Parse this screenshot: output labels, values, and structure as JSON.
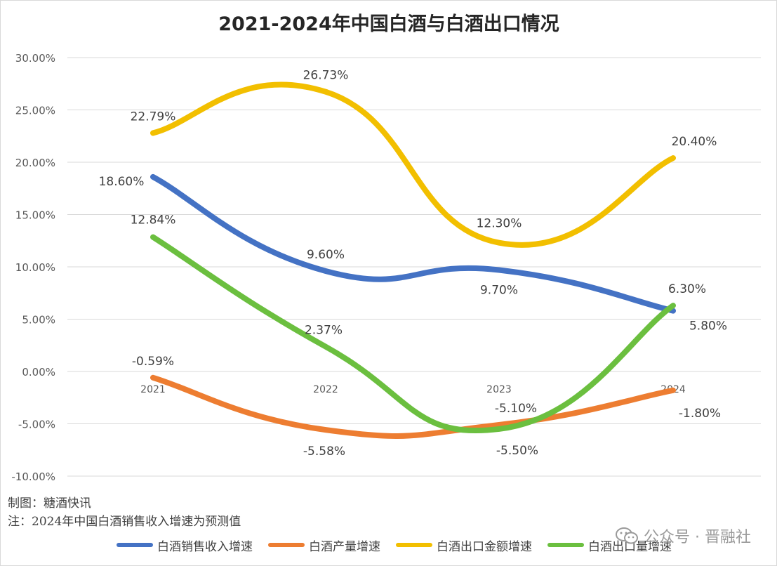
{
  "chart_data": {
    "type": "line",
    "title": "2021-2024年中国白酒与白酒出口情况",
    "categories": [
      "2021",
      "2022",
      "2023",
      "2024"
    ],
    "ylim": [
      -10,
      30
    ],
    "yticks": [
      "-10.00%",
      "-5.00%",
      "0.00%",
      "5.00%",
      "10.00%",
      "15.00%",
      "20.00%",
      "25.00%",
      "30.00%"
    ],
    "ytick_values": [
      -10,
      -5,
      0,
      5,
      10,
      15,
      20,
      25,
      30
    ],
    "grid": true,
    "legend_position": "bottom",
    "series": [
      {
        "name": "白酒销售收入增速",
        "color": "#4472C4",
        "values": [
          18.6,
          9.6,
          9.7,
          5.8
        ],
        "labels": [
          "18.60%",
          "9.60%",
          "9.70%",
          "5.80%"
        ]
      },
      {
        "name": "白酒产量增速",
        "color": "#ED7D31",
        "values": [
          -0.59,
          -5.58,
          -5.1,
          -1.8
        ],
        "labels": [
          "-0.59%",
          "-5.58%",
          "-5.10%",
          "-1.80%"
        ]
      },
      {
        "name": "白酒出口金额增速",
        "color": "#F2BF00",
        "values": [
          22.79,
          26.73,
          12.3,
          20.4
        ],
        "labels": [
          "22.79%",
          "26.73%",
          "12.30%",
          "20.40%"
        ]
      },
      {
        "name": "白酒出口量增速",
        "color": "#6BBF3F",
        "values": [
          12.84,
          2.37,
          -5.5,
          6.3
        ],
        "labels": [
          "12.84%",
          "2.37%",
          "-5.50%",
          "6.30%"
        ]
      }
    ]
  },
  "notes": {
    "maker": "制图：糖酒快讯",
    "remark": "注：2024年中国白酒销售收入增速为预测值"
  },
  "watermark": {
    "text": "公众号 · 晋融社",
    "icon": "wechat-icon"
  }
}
